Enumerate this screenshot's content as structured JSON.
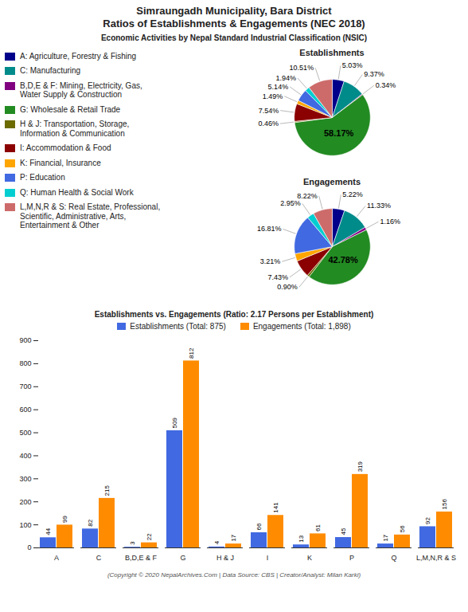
{
  "title": "Simraungadh Municipality, Bara District\nRatios of Establishments & Engagements (NEC 2018)",
  "subtitle": "Economic Activities by Nepal Standard Industrial Classification (NSIC)",
  "caption": "(Copyright © 2020 NepalArchives.Com | Data Source: CBS | Creator/Analyst: Milan Karki)",
  "chart_data": [
    {
      "type": "pie",
      "title": "Establishments",
      "categories": [
        "A: Agriculture, Forestry & Fishing",
        "C: Manufacturing",
        "B,D,E & F: Mining, Electricity, Gas,\nWater Supply & Construction",
        "G: Wholesale & Retail Trade",
        "H & J: Transportation, Storage,\nInformation & Communication",
        "I: Accommodation & Food",
        "K: Financial, Insurance",
        "P: Education",
        "Q: Human Health & Social Work",
        "L,M,N,R & S: Real Estate, Professional,\nScientific, Administrative, Arts,\nEntertainment & Other"
      ],
      "values": [
        5.03,
        9.37,
        0.34,
        58.17,
        0.46,
        7.54,
        1.49,
        5.14,
        1.94,
        10.51
      ],
      "value_labels": [
        "5.03%",
        "9.37%",
        "0.34%",
        "58.17%",
        "0.46%",
        "7.54%",
        "1.49%",
        "5.14%",
        "1.94%",
        "10.51%"
      ],
      "colors": [
        "#00008B",
        "#008B8B",
        "#800080",
        "#228B22",
        "#6B6B00",
        "#8B0000",
        "#FFA500",
        "#4169E1",
        "#00CED1",
        "#CD6B6B"
      ],
      "data_labels": true,
      "legend": "left"
    },
    {
      "type": "pie",
      "title": "Engagements",
      "categories": [
        "A: Agriculture, Forestry & Fishing",
        "C: Manufacturing",
        "B,D,E & F: Mining, Electricity, Gas,\nWater Supply & Construction",
        "G: Wholesale & Retail Trade",
        "H & J: Transportation, Storage,\nInformation & Communication",
        "I: Accommodation & Food",
        "K: Financial, Insurance",
        "P: Education",
        "Q: Human Health & Social Work",
        "L,M,N,R & S: Real Estate, Professional,\nScientific, Administrative, Arts,\nEntertainment & Other"
      ],
      "values": [
        5.22,
        11.33,
        1.16,
        42.78,
        0.9,
        7.43,
        3.21,
        16.81,
        2.95,
        8.22
      ],
      "value_labels": [
        "5.22%",
        "11.33%",
        "1.16%",
        "42.78%",
        "0.90%",
        "7.43%",
        "3.21%",
        "16.81%",
        "2.95%",
        "8.22%"
      ],
      "colors": [
        "#00008B",
        "#008B8B",
        "#800080",
        "#228B22",
        "#6B6B00",
        "#8B0000",
        "#FFA500",
        "#4169E1",
        "#00CED1",
        "#CD6B6B"
      ],
      "data_labels": true
    },
    {
      "type": "bar",
      "title": "Establishments vs. Engagements (Ratio: 2.17 Persons per Establishment)",
      "categories": [
        "A",
        "C",
        "B,D,E & F",
        "G",
        "H & J",
        "I",
        "K",
        "P",
        "Q",
        "L,M,N,R & S"
      ],
      "series": [
        {
          "name": "Establishments (Total: 875)",
          "color": "#4169E1",
          "values": [
            44,
            82,
            3,
            509,
            4,
            66,
            13,
            45,
            17,
            92
          ]
        },
        {
          "name": "Engagements (Total: 1,898)",
          "color": "#FF8C00",
          "values": [
            99,
            215,
            22,
            812,
            17,
            141,
            61,
            319,
            56,
            156
          ]
        }
      ],
      "ylim": [
        0,
        900
      ],
      "yticks": [
        0,
        100,
        200,
        300,
        400,
        500,
        600,
        700,
        800,
        900
      ],
      "grid": false,
      "legend": "top",
      "data_labels": true
    }
  ]
}
